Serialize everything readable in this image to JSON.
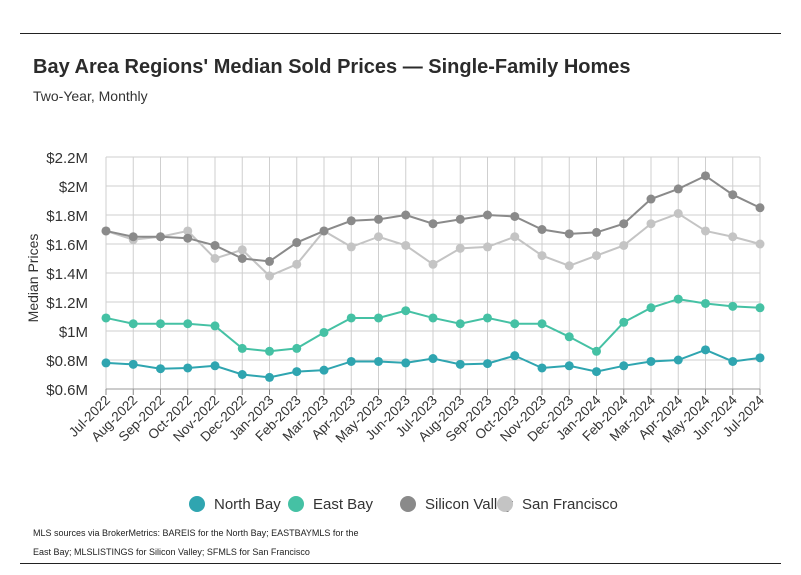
{
  "title": "Bay Area Regions' Median Sold Prices — Single-Family Homes",
  "subtitle": "Two-Year, Monthly",
  "source": "MLS sources via BrokerMetrics: BAREIS for the North Bay; EASTBAYMLS for the East Bay; MLSLISTINGS for Silicon Valley; SFMLS for San Francisco",
  "chart_data": {
    "type": "line",
    "title": "Bay Area Regions' Median Sold Prices — Single-Family Homes",
    "subtitle": "Two-Year, Monthly",
    "ylabel": "Median Prices",
    "xlabel": "",
    "ylim": [
      0.6,
      2.2
    ],
    "yticks": [
      0.6,
      0.8,
      1.0,
      1.2,
      1.4,
      1.6,
      1.8,
      2.0,
      2.2
    ],
    "ytick_labels": [
      "$0.6M",
      "$0.8M",
      "$1M",
      "$1.2M",
      "$1.4M",
      "$1.6M",
      "$1.8M",
      "$2M",
      "$2.2M"
    ],
    "unit": "$M",
    "grid": true,
    "legend_position": "bottom",
    "categories": [
      "Jul-2022",
      "Aug-2022",
      "Sep-2022",
      "Oct-2022",
      "Nov-2022",
      "Dec-2022",
      "Jan-2023",
      "Feb-2023",
      "Mar-2023",
      "Apr-2023",
      "May-2023",
      "Jun-2023",
      "Jul-2023",
      "Aug-2023",
      "Sep-2023",
      "Oct-2023",
      "Nov-2023",
      "Dec-2023",
      "Jan-2024",
      "Feb-2024",
      "Mar-2024",
      "Apr-2024",
      "May-2024",
      "Jun-2024",
      "Jul-2024"
    ],
    "series": [
      {
        "name": "North Bay",
        "color": "#2fa5b0",
        "values": [
          0.78,
          0.77,
          0.74,
          0.745,
          0.76,
          0.7,
          0.68,
          0.72,
          0.73,
          0.79,
          0.79,
          0.78,
          0.81,
          0.77,
          0.775,
          0.83,
          0.745,
          0.76,
          0.72,
          0.76,
          0.79,
          0.8,
          0.87,
          0.79,
          0.815
        ]
      },
      {
        "name": "East Bay",
        "color": "#45c1a4",
        "values": [
          1.09,
          1.05,
          1.05,
          1.05,
          1.035,
          0.88,
          0.86,
          0.88,
          0.99,
          1.09,
          1.09,
          1.14,
          1.09,
          1.05,
          1.09,
          1.05,
          1.05,
          0.96,
          0.86,
          1.06,
          1.16,
          1.22,
          1.19,
          1.17,
          1.16
        ]
      },
      {
        "name": "Silicon Valley",
        "color": "#8a8a8a",
        "values": [
          1.69,
          1.65,
          1.65,
          1.64,
          1.59,
          1.5,
          1.48,
          1.61,
          1.69,
          1.76,
          1.77,
          1.8,
          1.74,
          1.77,
          1.8,
          1.79,
          1.7,
          1.67,
          1.68,
          1.74,
          1.91,
          1.98,
          2.07,
          1.94,
          1.85
        ]
      },
      {
        "name": "San Francisco",
        "color": "#c4c4c4",
        "values": [
          1.69,
          1.63,
          1.65,
          1.69,
          1.5,
          1.56,
          1.38,
          1.46,
          1.69,
          1.58,
          1.65,
          1.59,
          1.46,
          1.57,
          1.58,
          1.65,
          1.52,
          1.45,
          1.52,
          1.59,
          1.74,
          1.81,
          1.69,
          1.65,
          1.6
        ]
      }
    ]
  }
}
